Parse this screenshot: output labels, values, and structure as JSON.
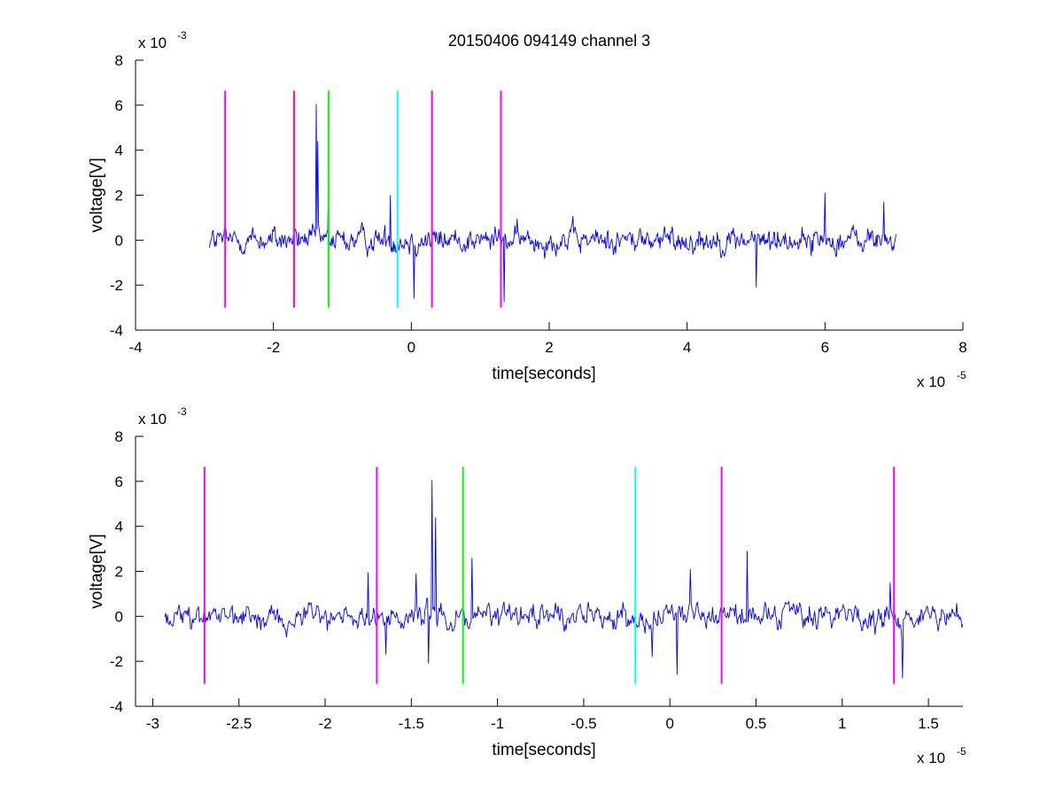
{
  "figure": {
    "title": "20150406 094149 channel 3"
  },
  "colors": {
    "signal": "#0000ff",
    "marker_magenta": "#ff00ff",
    "marker_green": "#00ff00",
    "marker_cyan": "#00ffff",
    "axes": "#000000",
    "background": "#ffffff"
  },
  "chart_data": [
    {
      "type": "line",
      "title": "20150406 094149 channel 3",
      "xlabel": "time[seconds]",
      "ylabel": "voltage[V]",
      "x_exponent_label": "x 10",
      "x_exponent": "-5",
      "y_exponent_label": "x 10",
      "y_exponent": "-3",
      "xlim": [
        -4,
        8
      ],
      "ylim": [
        -4,
        8
      ],
      "xticks": [
        -4,
        -2,
        0,
        2,
        4,
        6,
        8
      ],
      "xtick_labels": [
        "-4",
        "-2",
        "0",
        "2",
        "4",
        "6",
        "8"
      ],
      "yticks": [
        -4,
        -2,
        0,
        2,
        4,
        6,
        8
      ],
      "ytick_labels": [
        "-4",
        "-2",
        "0",
        "2",
        "4",
        "6",
        "8"
      ],
      "grid": false,
      "series": [
        {
          "color": "#0000ff",
          "x_range": [
            -2.93,
            7.03
          ],
          "approx_amplitude": 0.6,
          "spikes": [
            {
              "x": -1.38,
              "y": 6.05
            },
            {
              "x": -1.36,
              "y": 4.4
            },
            {
              "x": -1.2,
              "y": 2.6
            },
            {
              "x": -0.3,
              "y": 2.0
            },
            {
              "x": 0.04,
              "y": -2.6
            },
            {
              "x": 1.35,
              "y": -2.75
            },
            {
              "x": 6.0,
              "y": 2.1
            },
            {
              "x": 6.85,
              "y": 1.7
            },
            {
              "x": 5.0,
              "y": -2.1
            }
          ]
        }
      ],
      "markers": [
        {
          "x": -2.7,
          "y0": -3,
          "y1": 6.65,
          "color": "#ff00ff"
        },
        {
          "x": -1.7,
          "y0": -3,
          "y1": 6.65,
          "color": "#ff00ff"
        },
        {
          "x": -1.2,
          "y0": -3,
          "y1": 6.65,
          "color": "#00ff00"
        },
        {
          "x": -0.2,
          "y0": -3,
          "y1": 6.65,
          "color": "#00ffff"
        },
        {
          "x": 0.3,
          "y0": -3,
          "y1": 6.65,
          "color": "#ff00ff"
        },
        {
          "x": 1.3,
          "y0": -3,
          "y1": 6.65,
          "color": "#ff00ff"
        }
      ]
    },
    {
      "type": "line",
      "title": "",
      "xlabel": "time[seconds]",
      "ylabel": "voltage[V]",
      "x_exponent_label": "x 10",
      "x_exponent": "-5",
      "y_exponent_label": "x 10",
      "y_exponent": "-3",
      "xlim": [
        -3.1,
        1.7
      ],
      "ylim": [
        -4,
        8
      ],
      "xticks": [
        -3,
        -2.5,
        -2,
        -1.5,
        -1,
        -0.5,
        0,
        0.5,
        1,
        1.5
      ],
      "xtick_labels": [
        "-3",
        "-2.5",
        "-2",
        "-1.5",
        "-1",
        "-0.5",
        "0",
        "0.5",
        "1",
        "1.5"
      ],
      "yticks": [
        -4,
        -2,
        0,
        2,
        4,
        6,
        8
      ],
      "ytick_labels": [
        "-4",
        "-2",
        "0",
        "2",
        "4",
        "6",
        "8"
      ],
      "grid": false,
      "series": [
        {
          "color": "#0000ff",
          "x_range": [
            -2.93,
            1.7
          ],
          "approx_amplitude": 0.6,
          "spikes": [
            {
              "x": -1.38,
              "y": 6.05
            },
            {
              "x": -1.36,
              "y": 4.4
            },
            {
              "x": -1.47,
              "y": 1.9
            },
            {
              "x": -1.75,
              "y": 1.95
            },
            {
              "x": -1.65,
              "y": -1.7
            },
            {
              "x": -1.4,
              "y": -2.1
            },
            {
              "x": -1.15,
              "y": 2.6
            },
            {
              "x": -0.1,
              "y": -1.8
            },
            {
              "x": 0.04,
              "y": -2.6
            },
            {
              "x": 0.12,
              "y": 2.1
            },
            {
              "x": 0.45,
              "y": 2.9
            },
            {
              "x": 1.35,
              "y": -2.75
            },
            {
              "x": 1.28,
              "y": 1.5
            }
          ]
        }
      ],
      "markers": [
        {
          "x": -2.7,
          "y0": -3,
          "y1": 6.65,
          "color": "#ff00ff"
        },
        {
          "x": -1.7,
          "y0": -3,
          "y1": 6.65,
          "color": "#ff00ff"
        },
        {
          "x": -1.2,
          "y0": -3,
          "y1": 6.65,
          "color": "#00ff00"
        },
        {
          "x": -0.2,
          "y0": -3,
          "y1": 6.65,
          "color": "#00ffff"
        },
        {
          "x": 0.3,
          "y0": -3,
          "y1": 6.65,
          "color": "#ff00ff"
        },
        {
          "x": 1.3,
          "y0": -3,
          "y1": 6.65,
          "color": "#ff00ff"
        }
      ]
    }
  ]
}
